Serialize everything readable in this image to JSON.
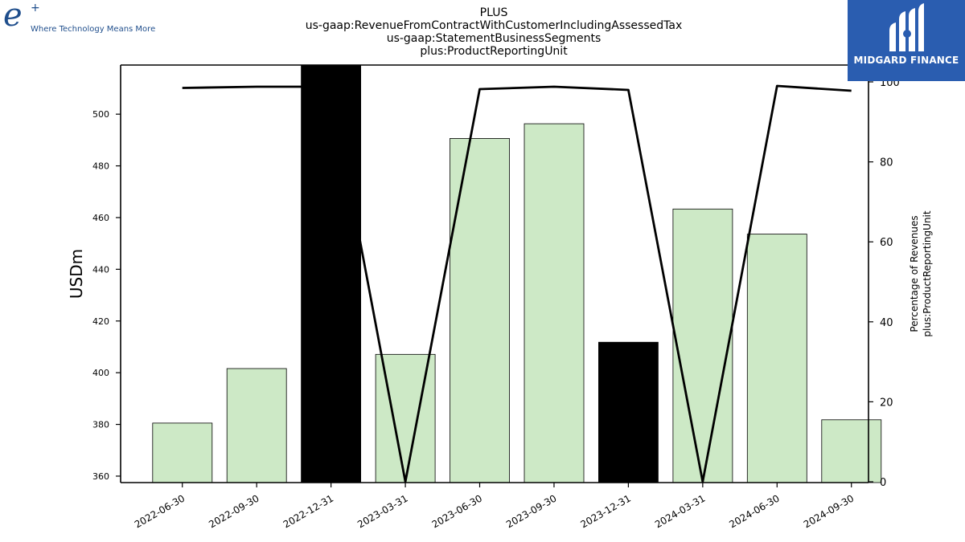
{
  "branding": {
    "left_logo_mark": "e",
    "left_logo_plus": "+",
    "left_logo_tagline": "Where Technology Means More",
    "right_logo_text": "MIDGARD FINANCE",
    "right_logo_bg": "#2a5db0"
  },
  "chart_data": {
    "type": "bar",
    "title_lines": [
      "PLUS",
      "us-gaap:RevenueFromContractWithCustomerIncludingAssessedTax",
      "us-gaap:StatementBusinessSegments",
      "plus:ProductReportingUnit"
    ],
    "categories": [
      "2022-06-30",
      "2022-09-30",
      "2022-12-31",
      "2023-03-31",
      "2023-06-30",
      "2023-09-30",
      "2023-12-31",
      "2024-03-31",
      "2024-06-30",
      "2024-09-30"
    ],
    "values": [
      380.5,
      401.6,
      519.0,
      407.1,
      490.6,
      496.3,
      411.8,
      463.3,
      453.6,
      381.8
    ],
    "bar_colors": [
      "#cde9c6",
      "#cde9c6",
      "#000000",
      "#cde9c6",
      "#cde9c6",
      "#cde9c6",
      "#000000",
      "#cde9c6",
      "#cde9c6",
      "#cde9c6"
    ],
    "ylabel": "USDm",
    "ylim": [
      357.5,
      519.0
    ],
    "yticks": [
      360,
      380,
      400,
      420,
      440,
      460,
      480,
      500
    ],
    "secondary_axis": {
      "ylabel_lines": [
        "Percentage of Revenues",
        "plus:ProductReportingUnit"
      ],
      "ylim": [
        0,
        100
      ],
      "yticks": [
        0,
        20,
        40,
        60,
        80,
        100
      ],
      "line_values": [
        98.5,
        98.8,
        98.8,
        0,
        98.2,
        98.8,
        98.0,
        0,
        99.0,
        97.8
      ],
      "line_color": "#000000"
    },
    "grid": false
  }
}
